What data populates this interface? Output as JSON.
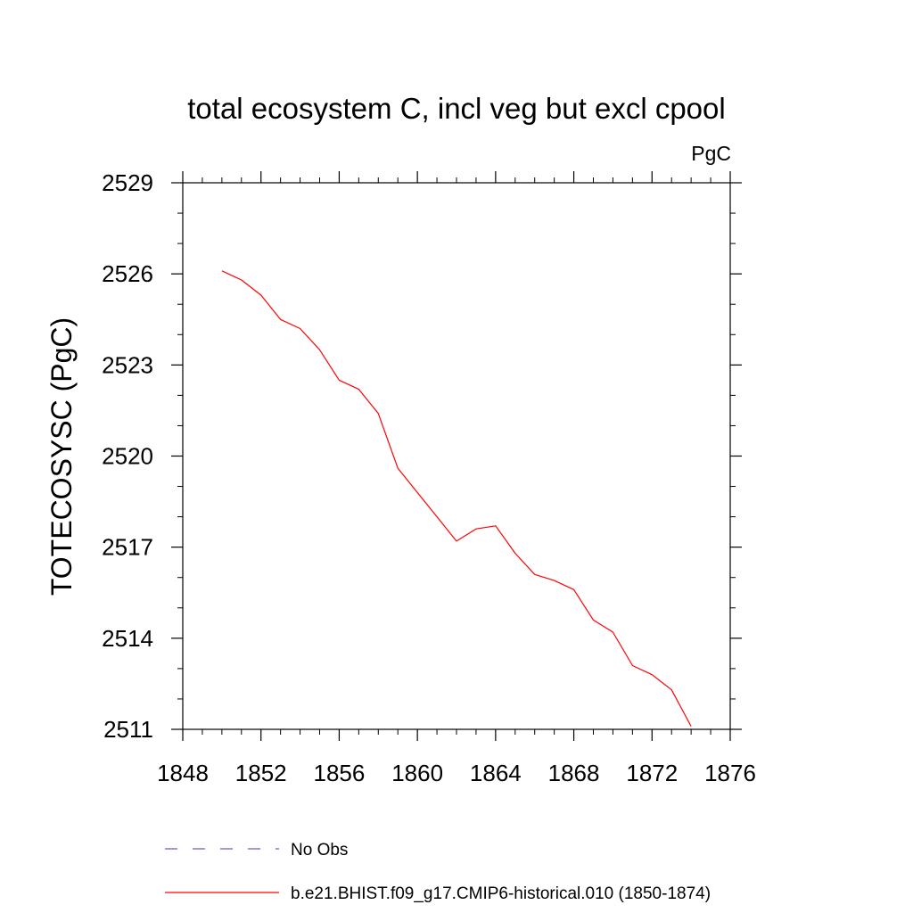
{
  "chart_data": {
    "type": "line",
    "title": "total ecosystem C, incl veg but excl cpool",
    "units_label": "PgC",
    "ylabel": "TOTECOSYSC  (PgC)",
    "xlabel": "",
    "xlim": [
      1848,
      1876
    ],
    "ylim": [
      2511,
      2529
    ],
    "x_ticks": [
      "1848",
      "1852",
      "1856",
      "1860",
      "1864",
      "1868",
      "1872",
      "1876"
    ],
    "y_ticks": [
      "2511",
      "2514",
      "2517",
      "2520",
      "2523",
      "2526",
      "2529"
    ],
    "grid": false,
    "series": [
      {
        "name": "b.e21.BHIST.f09_g17.CMIP6-historical.010 (1850-1874)",
        "color": "#ff0000",
        "x": [
          1850,
          1851,
          1852,
          1853,
          1854,
          1855,
          1856,
          1857,
          1858,
          1859,
          1860,
          1861,
          1862,
          1863,
          1864,
          1865,
          1866,
          1867,
          1868,
          1869,
          1870,
          1871,
          1872,
          1873,
          1874
        ],
        "values": [
          2526.1,
          2525.8,
          2525.3,
          2524.5,
          2524.2,
          2523.5,
          2522.5,
          2522.2,
          2521.4,
          2519.6,
          2518.8,
          2518.0,
          2517.2,
          2517.6,
          2517.7,
          2516.8,
          2516.1,
          2515.9,
          2515.6,
          2514.6,
          2514.2,
          2513.1,
          2512.8,
          2512.3,
          2511.1
        ]
      }
    ],
    "legend": [
      {
        "label": "No Obs",
        "color": "#6a5acd",
        "style": "dashed"
      },
      {
        "label": "b.e21.BHIST.f09_g17.CMIP6-historical.010 (1850-1874)",
        "color": "#ff0000",
        "style": "solid"
      }
    ]
  }
}
